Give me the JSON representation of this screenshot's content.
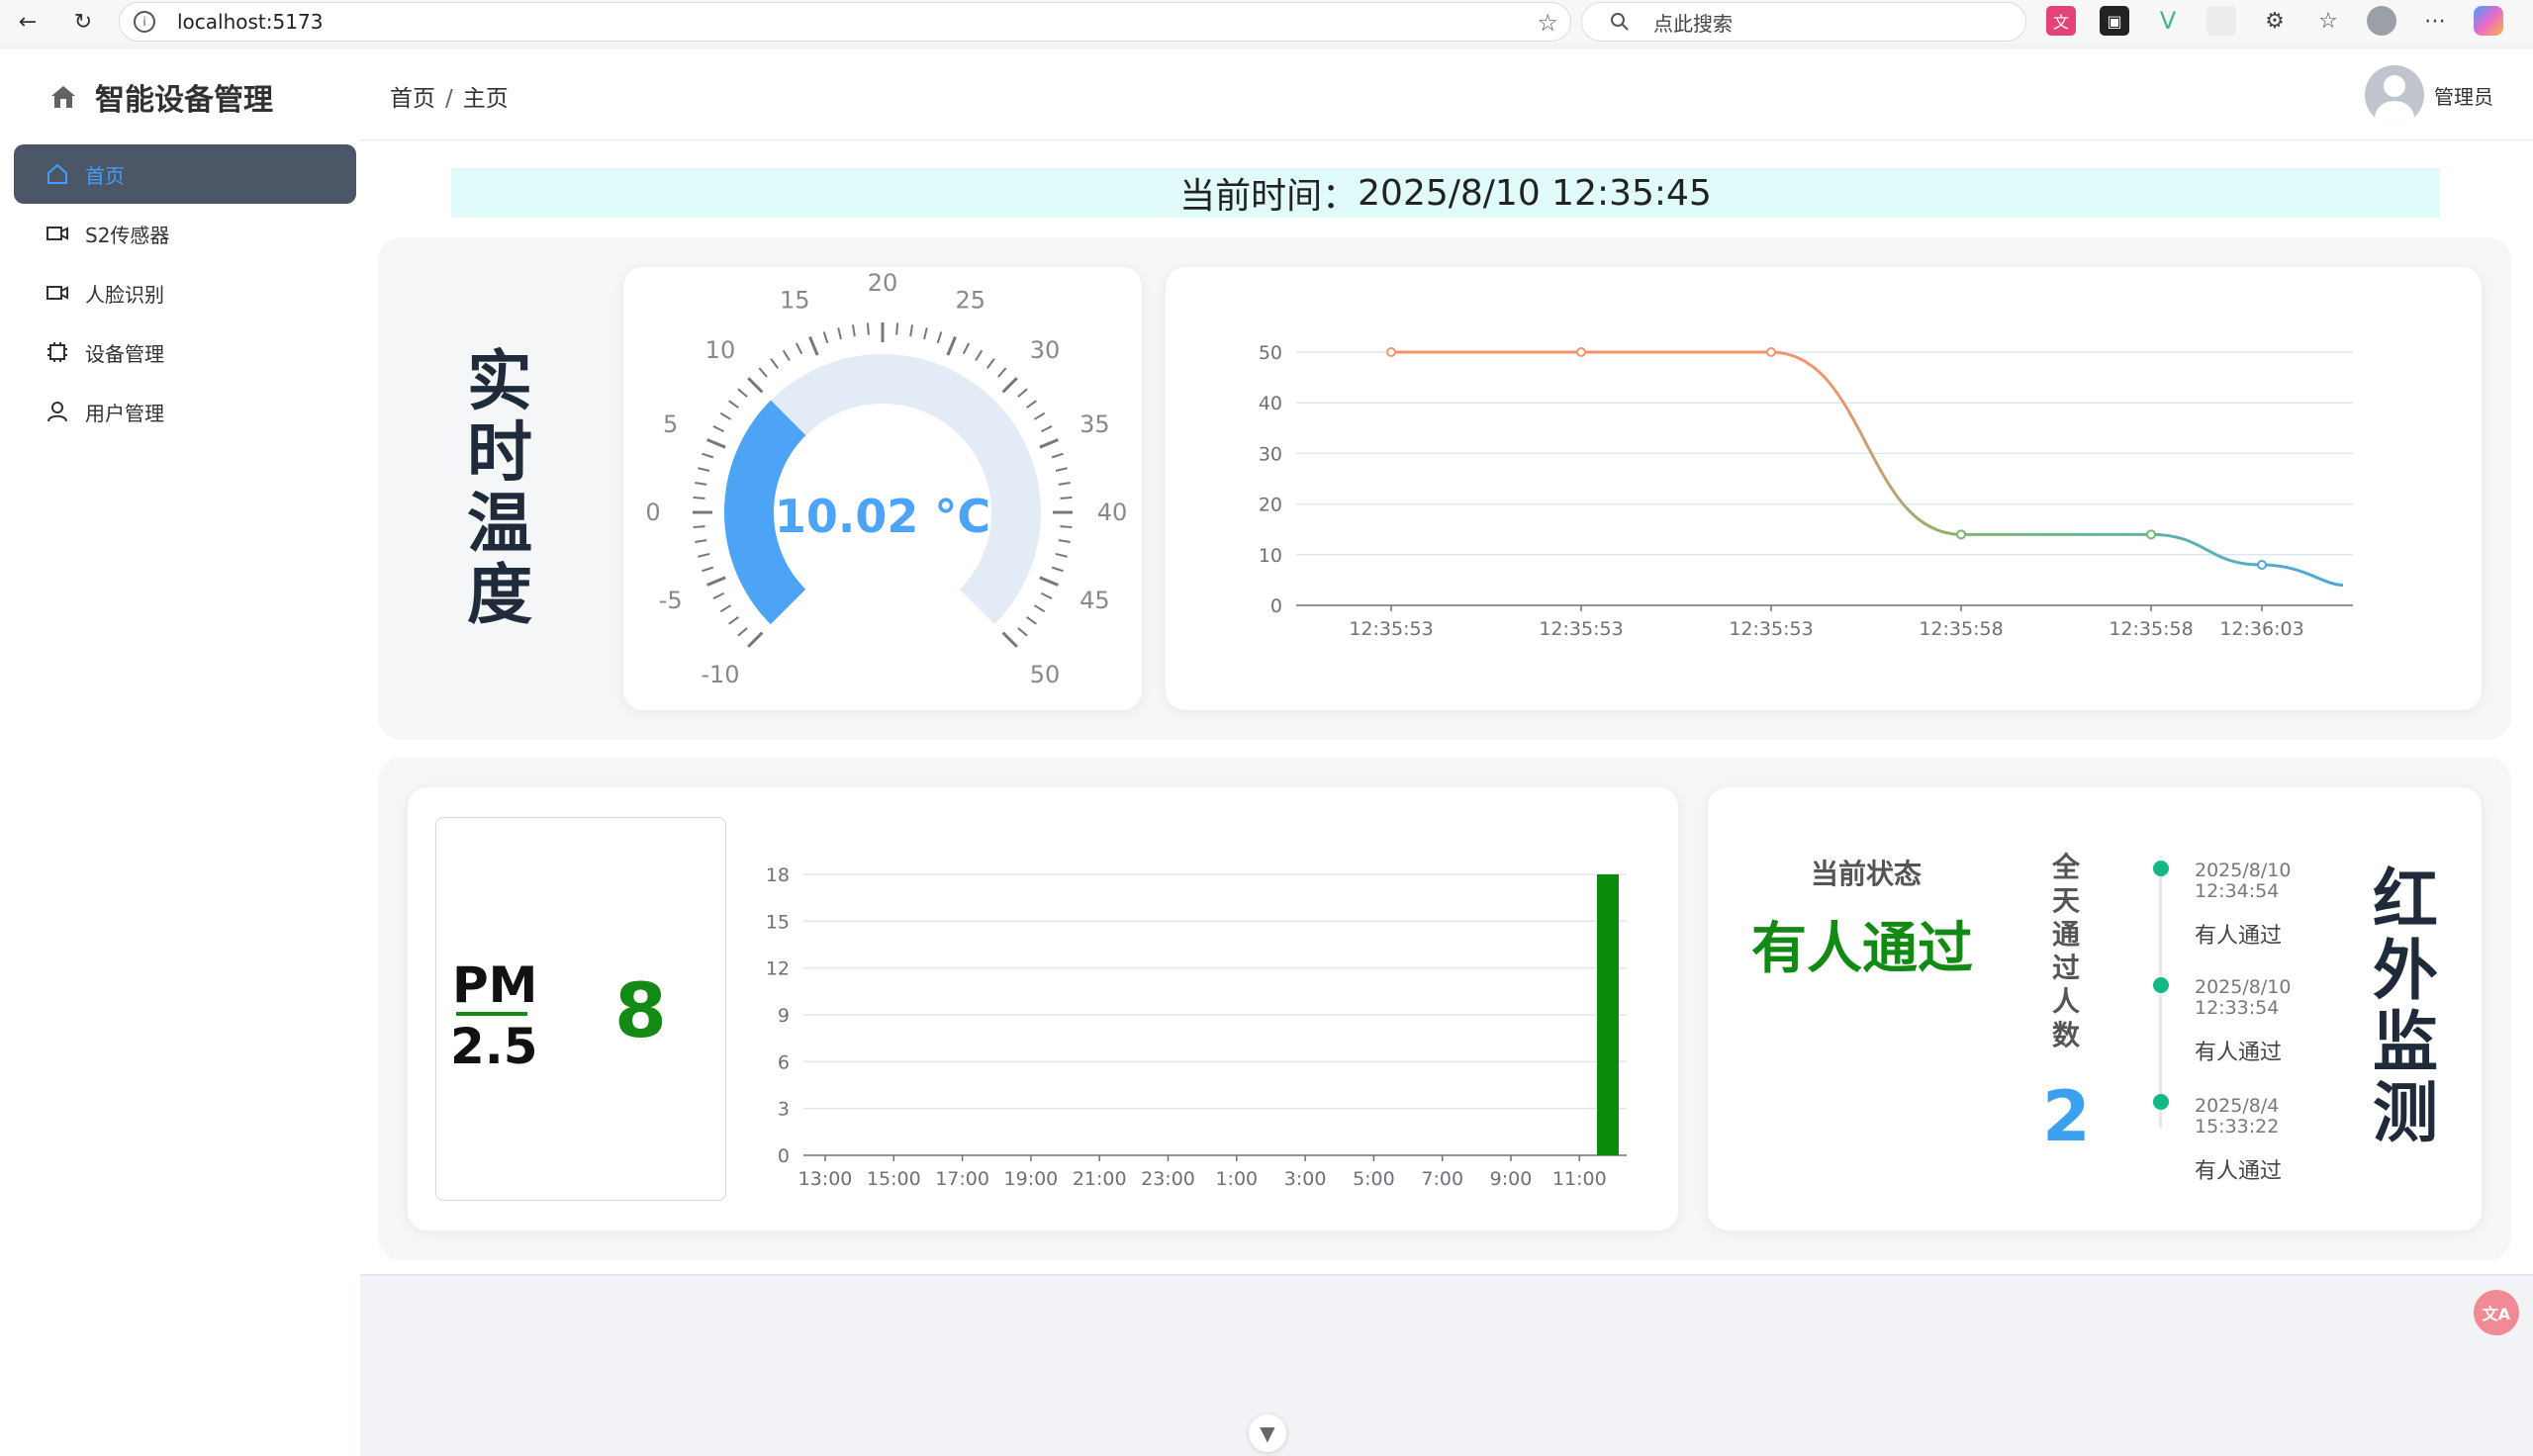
{
  "browser": {
    "url": "localhost:5173",
    "search_placeholder": "点此搜索"
  },
  "sidebar": {
    "title": "智能设备管理",
    "items": [
      {
        "label": "首页",
        "active": true
      },
      {
        "label": "S2传感器"
      },
      {
        "label": "人脸识别"
      },
      {
        "label": "设备管理"
      },
      {
        "label": "用户管理"
      }
    ]
  },
  "header": {
    "breadcrumb": [
      "首页",
      "主页"
    ],
    "separator": "/",
    "user_name": "管理员"
  },
  "time_bar": {
    "label": "当前时间：",
    "value": "2025/8/10 12:35:45"
  },
  "temperature": {
    "title_chars": [
      "实",
      "时",
      "温",
      "度"
    ],
    "gauge": {
      "value": 10.02,
      "display": "10.02 °C",
      "min": -10,
      "max": 50,
      "ticks": [
        "-10",
        "-5",
        "0",
        "5",
        "10",
        "15",
        "20",
        "25",
        "30",
        "35",
        "40",
        "45",
        "50"
      ]
    }
  },
  "chart_data": [
    {
      "type": "line",
      "title": "",
      "x": [
        "12:35:53",
        "12:35:53",
        "12:35:53",
        "12:35:58",
        "12:35:58",
        "12:36:03"
      ],
      "values": [
        50,
        50,
        50,
        14,
        14,
        8
      ],
      "ylim": [
        0,
        50
      ],
      "yticks": [
        "0",
        "10",
        "20",
        "30",
        "40",
        "50"
      ]
    },
    {
      "type": "bar",
      "title": "",
      "categories": [
        "13:00",
        "15:00",
        "17:00",
        "19:00",
        "21:00",
        "23:00",
        "1:00",
        "3:00",
        "5:00",
        "7:00",
        "9:00",
        "11:00"
      ],
      "values": [
        0,
        0,
        0,
        0,
        0,
        0,
        0,
        0,
        0,
        0,
        0,
        18
      ],
      "ylim": [
        0,
        18
      ],
      "yticks": [
        "0",
        "3",
        "6",
        "9",
        "12",
        "15",
        "18"
      ],
      "color": "#0b8a0b"
    }
  ],
  "pm": {
    "label_top": "PM",
    "label_bottom": "2.5",
    "value": "8"
  },
  "infrared": {
    "title_chars": [
      "红",
      "外",
      "监",
      "测"
    ],
    "status_label": "当前状态",
    "status_value": "有人通过",
    "count_label_chars": [
      "全",
      "天",
      "通",
      "过",
      "人",
      "数"
    ],
    "count_value": "2",
    "timeline": [
      {
        "date": "2025/8/10",
        "time": "12:34:54",
        "text": "有人通过"
      },
      {
        "date": "2025/8/10",
        "time": "12:33:54",
        "text": "有人通过"
      },
      {
        "date": "2025/8/4",
        "time": "15:33:22",
        "text": "有人通过"
      }
    ]
  },
  "colors": {
    "accent": "#409eff",
    "green": "#138a13",
    "sidebar_active": "#4b5766"
  }
}
